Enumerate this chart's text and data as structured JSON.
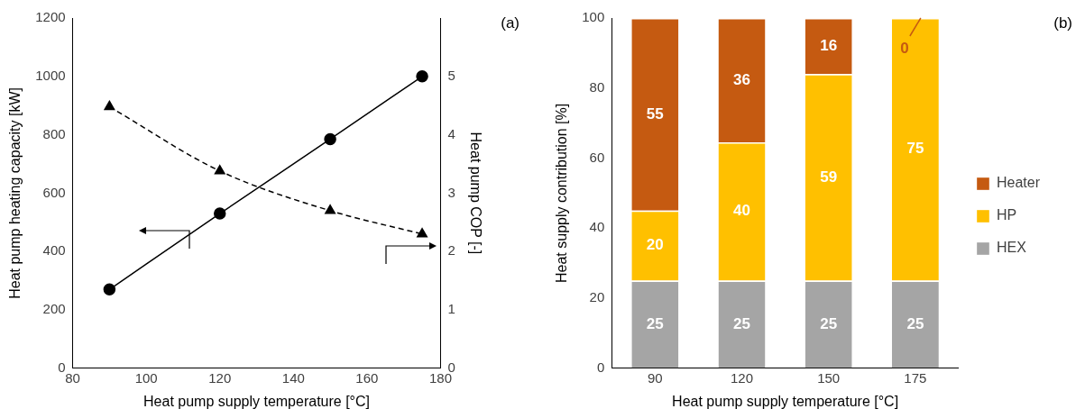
{
  "chart_data": [
    {
      "type": "line",
      "x": [
        90,
        120,
        150,
        175
      ],
      "xlim": [
        80,
        180
      ],
      "xticks": [
        80,
        100,
        120,
        140,
        160,
        180
      ],
      "ylim": [
        0,
        1200
      ],
      "yticks": [
        0,
        200,
        400,
        600,
        800,
        1000,
        1200
      ],
      "y2lim": [
        0,
        6
      ],
      "y2ticks": [
        0,
        1,
        2,
        3,
        4,
        5
      ],
      "xlabel": "Heat pump supply temperature [°C]",
      "ylabel": "Heat pump heating capacity [kW]",
      "y2label": "Heat pump COP [-]",
      "grid": false,
      "legend": false,
      "annotations": [
        "(a)"
      ],
      "series": [
        {
          "color": "#000000",
          "values": [
            270,
            530,
            785,
            1000
          ],
          "marker": "circle",
          "line_style": "solid"
        },
        {
          "color": "#000000",
          "values": [
            4.48,
            3.38,
            2.7,
            2.3
          ],
          "marker": "triangle",
          "line_style": "dashed",
          "axis": "y2"
        }
      ]
    },
    {
      "type": "bar",
      "stacked": true,
      "categories": [
        "90",
        "120",
        "150",
        "175"
      ],
      "ylim": [
        0,
        100
      ],
      "yticks": [
        0,
        20,
        40,
        60,
        80,
        100
      ],
      "xlabel": "Heat pump supply temperature [°C]",
      "ylabel": "Heat supply contribution [%]",
      "grid": false,
      "legend": "right",
      "annotations": [
        "(b)"
      ],
      "series": [
        {
          "name": "HEX",
          "color": "#a5a5a5",
          "values": [
            25,
            25,
            25,
            25
          ],
          "value_labels": [
            "25",
            "25",
            "25",
            "25"
          ]
        },
        {
          "name": "HP",
          "color": "#ffc000",
          "values": [
            20,
            39.5,
            59,
            75
          ],
          "value_labels": [
            "20",
            "40",
            "59",
            "75"
          ]
        },
        {
          "name": "Heater",
          "color": "#c55a11",
          "values": [
            55,
            35.5,
            16,
            0
          ],
          "value_labels": [
            "55",
            "36",
            "16",
            "0"
          ]
        }
      ]
    }
  ]
}
